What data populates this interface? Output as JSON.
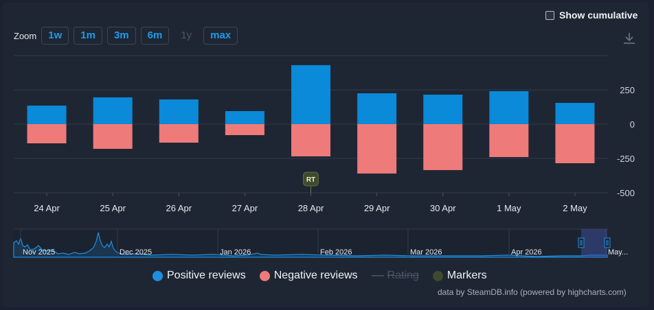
{
  "controls": {
    "cumulative_label": "Show cumulative",
    "zoom_label": "Zoom",
    "zoom_buttons": [
      {
        "label": "1w",
        "enabled": true
      },
      {
        "label": "1m",
        "enabled": true
      },
      {
        "label": "3m",
        "enabled": true
      },
      {
        "label": "6m",
        "enabled": true
      },
      {
        "label": "1y",
        "enabled": false
      },
      {
        "label": "max",
        "enabled": true
      }
    ]
  },
  "legend": {
    "positive": "Positive reviews",
    "negative": "Negative reviews",
    "rating": "Rating",
    "markers": "Markers"
  },
  "credits": "data by SteamDB.info (powered by highcharts.com)",
  "navigator": {
    "labels": [
      "Nov 2025",
      "Dec 2025",
      "Jan 2026",
      "Feb 2026",
      "Mar 2026",
      "Apr 2026",
      "May..."
    ]
  },
  "marker": {
    "label": "RT",
    "category": "28 Apr"
  },
  "colors": {
    "positive": "#0a8ad8",
    "negative": "#ef7a7a",
    "markers": "#3f4b2c",
    "background": "#1f2633"
  },
  "chart_data": {
    "type": "bar",
    "stacking": "diverging",
    "categories": [
      "24 Apr",
      "25 Apr",
      "26 Apr",
      "27 Apr",
      "28 Apr",
      "29 Apr",
      "30 Apr",
      "1 May",
      "2 May"
    ],
    "series": [
      {
        "name": "Positive reviews",
        "values": [
          135,
          195,
          180,
          95,
          430,
          225,
          215,
          240,
          155
        ]
      },
      {
        "name": "Negative reviews",
        "values": [
          -140,
          -180,
          -135,
          -80,
          -235,
          -360,
          -335,
          -240,
          -285
        ]
      }
    ],
    "yticks": [
      250,
      0,
      -250,
      -500
    ],
    "ylim": [
      -500,
      450
    ],
    "grid": true,
    "legend_position": "bottom"
  }
}
